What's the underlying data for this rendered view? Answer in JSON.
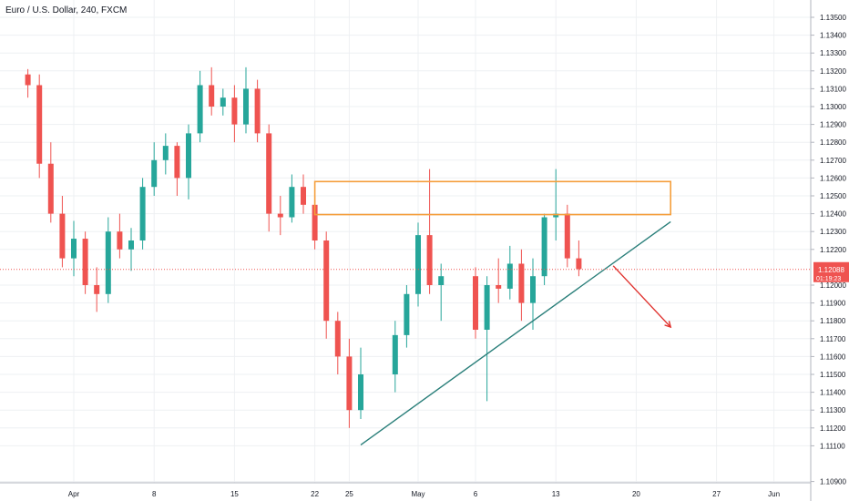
{
  "header": {
    "symbol_title": "Euro / U.S. Dollar, 240, FXCM"
  },
  "price_tag": {
    "value": "1.12088",
    "countdown": "01:19:23"
  },
  "colors": {
    "up": "#26a69a",
    "down": "#ef5350",
    "zone": "#f59e3b",
    "trendline": "#2a7f7a",
    "arrow": "#e0312d",
    "price_line": "#ef5350"
  },
  "chart_data": {
    "type": "candlestick",
    "y_ticks": [
      "1.13500",
      "1.13400",
      "1.13300",
      "1.13200",
      "1.13100",
      "1.13000",
      "1.12900",
      "1.12800",
      "1.12700",
      "1.12600",
      "1.12500",
      "1.12400",
      "1.12300",
      "1.12200",
      "1.12000",
      "1.11900",
      "1.11800",
      "1.11700",
      "1.11600",
      "1.11500",
      "1.11400",
      "1.11300",
      "1.11200",
      "1.11100",
      "1.10900"
    ],
    "x_ticks": [
      "Apr",
      "8",
      "15",
      "22",
      "25",
      "May",
      "6",
      "13",
      "20",
      "27",
      "Jun"
    ],
    "ylim": [
      1.1088,
      1.136
    ],
    "grid": true,
    "current_price": 1.12088,
    "candles_approx": [
      [
        "Mar 28",
        1.1318,
        1.1321,
        1.1305,
        1.1312
      ],
      [
        "Mar 29",
        1.1312,
        1.1318,
        1.126,
        1.1268
      ],
      [
        "Mar 30",
        1.1268,
        1.128,
        1.1235,
        1.124
      ],
      [
        "Mar 31",
        1.124,
        1.125,
        1.121,
        1.1215
      ],
      [
        "Apr 1",
        1.1215,
        1.1236,
        1.1205,
        1.1226
      ],
      [
        "Apr 2",
        1.1226,
        1.123,
        1.1195,
        1.12
      ],
      [
        "Apr 3",
        1.12,
        1.121,
        1.1185,
        1.1195
      ],
      [
        "Apr 4",
        1.1195,
        1.1238,
        1.119,
        1.123
      ],
      [
        "Apr 5",
        1.123,
        1.124,
        1.1215,
        1.122
      ],
      [
        "Apr 6",
        1.122,
        1.1232,
        1.1208,
        1.1225
      ],
      [
        "Apr 7",
        1.1225,
        1.126,
        1.122,
        1.1255
      ],
      [
        "Apr 8",
        1.1255,
        1.128,
        1.125,
        1.127
      ],
      [
        "Apr 9",
        1.127,
        1.1285,
        1.1262,
        1.1278
      ],
      [
        "Apr 10",
        1.1278,
        1.128,
        1.125,
        1.126
      ],
      [
        "Apr 11",
        1.126,
        1.129,
        1.1248,
        1.1285
      ],
      [
        "Apr 12",
        1.1285,
        1.132,
        1.128,
        1.1312
      ],
      [
        "Apr 13",
        1.1312,
        1.1322,
        1.1295,
        1.13
      ],
      [
        "Apr 14",
        1.13,
        1.131,
        1.1295,
        1.1305
      ],
      [
        "Apr 15",
        1.1305,
        1.1312,
        1.128,
        1.129
      ],
      [
        "Apr 16",
        1.129,
        1.1322,
        1.1285,
        1.131
      ],
      [
        "Apr 17",
        1.131,
        1.1315,
        1.128,
        1.1285
      ],
      [
        "Apr 18",
        1.1285,
        1.129,
        1.123,
        1.124
      ],
      [
        "Apr 19",
        1.124,
        1.125,
        1.1228,
        1.1238
      ],
      [
        "Apr 20",
        1.1238,
        1.1262,
        1.1235,
        1.1255
      ],
      [
        "Apr 21",
        1.1255,
        1.1262,
        1.124,
        1.1245
      ],
      [
        "Apr 22",
        1.1245,
        1.125,
        1.122,
        1.1225
      ],
      [
        "Apr 23",
        1.1225,
        1.123,
        1.117,
        1.118
      ],
      [
        "Apr 24",
        1.118,
        1.1185,
        1.115,
        1.116
      ],
      [
        "Apr 25",
        1.116,
        1.117,
        1.112,
        1.113
      ],
      [
        "Apr 26",
        1.113,
        1.1165,
        1.1125,
        1.115
      ],
      [
        "Apr 29",
        1.115,
        1.118,
        1.114,
        1.1172
      ],
      [
        "Apr 30",
        1.1172,
        1.12,
        1.1165,
        1.1195
      ],
      [
        "May 1",
        1.1195,
        1.1235,
        1.1188,
        1.1228
      ],
      [
        "May 2",
        1.1228,
        1.1265,
        1.1195,
        1.12
      ],
      [
        "May 3",
        1.12,
        1.1212,
        1.118,
        1.1205
      ],
      [
        "May 6",
        1.1205,
        1.121,
        1.117,
        1.1175
      ],
      [
        "May 7",
        1.1175,
        1.1205,
        1.1135,
        1.12
      ],
      [
        "May 8",
        1.12,
        1.1215,
        1.119,
        1.1198
      ],
      [
        "May 9",
        1.1198,
        1.1222,
        1.1192,
        1.1212
      ],
      [
        "May 10",
        1.1212,
        1.122,
        1.118,
        1.119
      ],
      [
        "May 11",
        1.119,
        1.1215,
        1.1175,
        1.1205
      ],
      [
        "May 12",
        1.1205,
        1.124,
        1.12,
        1.1238
      ],
      [
        "May 13",
        1.1238,
        1.1265,
        1.1225,
        1.124
      ],
      [
        "May 14",
        1.124,
        1.1245,
        1.121,
        1.1215
      ],
      [
        "May 15",
        1.1215,
        1.1225,
        1.1205,
        1.1209
      ]
    ],
    "annotations": [
      {
        "type": "resistance-zone",
        "from": "Apr 22",
        "to": "May 23",
        "low": 1.12395,
        "high": 1.1258
      },
      {
        "type": "rising-trendline",
        "start": [
          "Apr 26",
          1.11105
        ],
        "end": [
          "May 23",
          1.12355
        ]
      },
      {
        "type": "arrow-down",
        "start": [
          "May 18",
          1.12108
        ],
        "end": [
          "May 23",
          1.11765
        ]
      }
    ]
  }
}
